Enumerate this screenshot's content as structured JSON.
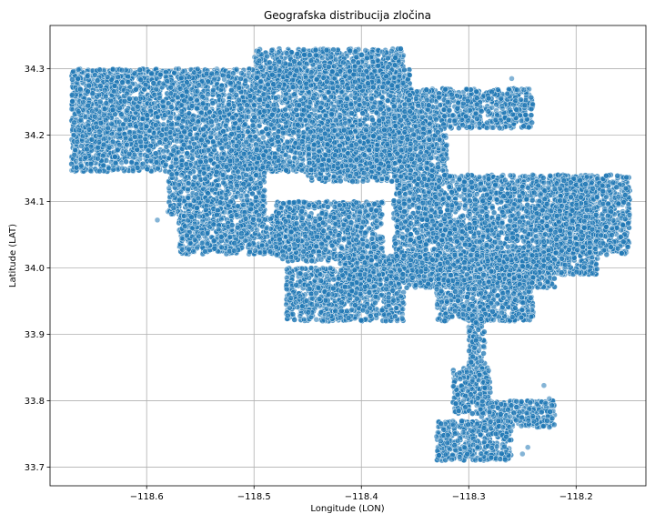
{
  "chart_data": {
    "type": "scatter",
    "title": "Geografska distribucija zločina",
    "xlabel": "Longitude (LON)",
    "ylabel": "Latitude (LAT)",
    "xlim": [
      -118.69,
      -118.135
    ],
    "ylim": [
      33.672,
      34.365
    ],
    "xticks": [
      -118.6,
      -118.5,
      -118.4,
      -118.3,
      -118.2
    ],
    "xtick_labels": [
      "−118.6",
      "−118.5",
      "−118.4",
      "−118.3",
      "−118.2"
    ],
    "yticks": [
      33.7,
      33.8,
      33.9,
      34.0,
      34.1,
      34.2,
      34.3
    ],
    "ytick_labels": [
      "33.7",
      "33.8",
      "33.9",
      "34.0",
      "34.1",
      "34.2",
      "34.3"
    ],
    "grid": true,
    "marker_color": "#1f77b4",
    "marker_edge_color": "#ffffff",
    "marker_alpha": 0.55,
    "regions": [
      {
        "lon": [
          -118.67,
          -118.355
        ],
        "lat": [
          34.145,
          34.3
        ]
      },
      {
        "lon": [
          -118.5,
          -118.36
        ],
        "lat": [
          34.27,
          34.33
        ]
      },
      {
        "lon": [
          -118.36,
          -118.24
        ],
        "lat": [
          34.21,
          34.27
        ]
      },
      {
        "lon": [
          -118.45,
          -118.32
        ],
        "lat": [
          34.13,
          34.21
        ]
      },
      {
        "lon": [
          -118.58,
          -118.49
        ],
        "lat": [
          34.08,
          34.145
        ]
      },
      {
        "lon": [
          -118.57,
          -118.46
        ],
        "lat": [
          34.02,
          34.08
        ]
      },
      {
        "lon": [
          -118.48,
          -118.38
        ],
        "lat": [
          34.01,
          34.1
        ]
      },
      {
        "lon": [
          -118.37,
          -118.18
        ],
        "lat": [
          33.99,
          34.14
        ]
      },
      {
        "lon": [
          -118.22,
          -118.15
        ],
        "lat": [
          34.02,
          34.14
        ]
      },
      {
        "lon": [
          -118.42,
          -118.22
        ],
        "lat": [
          33.97,
          34.02
        ]
      },
      {
        "lon": [
          -118.47,
          -118.36
        ],
        "lat": [
          33.92,
          34.0
        ]
      },
      {
        "lon": [
          -118.33,
          -118.24
        ],
        "lat": [
          33.92,
          33.99
        ]
      },
      {
        "lon": [
          -118.3,
          -118.285
        ],
        "lat": [
          33.84,
          33.93
        ]
      },
      {
        "lon": [
          -118.315,
          -118.28
        ],
        "lat": [
          33.78,
          33.85
        ]
      },
      {
        "lon": [
          -118.29,
          -118.22
        ],
        "lat": [
          33.76,
          33.8
        ]
      },
      {
        "lon": [
          -118.33,
          -118.26
        ],
        "lat": [
          33.71,
          33.77
        ]
      }
    ],
    "outliers": [
      [
        -118.59,
        34.072
      ],
      [
        -118.48,
        34.3
      ],
      [
        -118.26,
        34.285
      ],
      [
        -118.23,
        33.823
      ],
      [
        -118.245,
        33.73
      ],
      [
        -118.25,
        33.72
      ],
      [
        -118.225,
        33.803
      ],
      [
        -118.575,
        34.09
      ],
      [
        -118.255,
        34.268
      ]
    ]
  }
}
